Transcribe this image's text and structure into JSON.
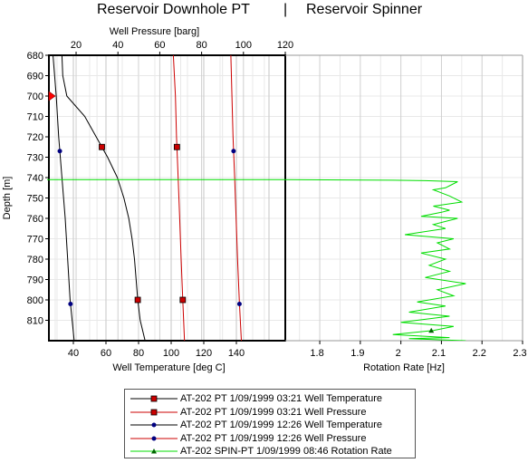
{
  "titles": {
    "left": "Reservoir Downhole PT",
    "separator": "|",
    "right": "Reservoir Spinner"
  },
  "colors": {
    "temperature_line": "#000000",
    "pressure_line": "#cc0000",
    "spinner_line": "#00dd00",
    "marker_square": "#cc0000",
    "marker_circle": "#000080",
    "marker_triangle": "#006600",
    "depth_marker": "#ff0000",
    "grid_major": "#cfcfcf",
    "grid_minor": "#e8e8e8"
  },
  "chart_data": [
    {
      "type": "line",
      "panel": "Reservoir Downhole PT",
      "ylabel": "Depth [m]",
      "ylim": [
        680,
        820
      ],
      "y_inverted": true,
      "y_ticks": [
        680,
        690,
        700,
        710,
        720,
        730,
        740,
        750,
        760,
        770,
        780,
        790,
        800,
        810
      ],
      "x_bottom": {
        "label": "Well Temperature [deg C]",
        "range": [
          25,
          170
        ],
        "ticks": [
          40,
          60,
          80,
          100,
          120,
          140
        ]
      },
      "x_top": {
        "label": "Well Pressure [barg]",
        "range": [
          7,
          120
        ],
        "ticks": [
          20,
          40,
          60,
          80,
          100,
          120
        ]
      },
      "depth_marker": 700,
      "series": [
        {
          "name": "AT-202 PT 1/09/1999 03:21 Well Temperature",
          "axis": "bottom",
          "color": "#000000",
          "marker": "square",
          "marker_depths": [
            725,
            800
          ],
          "points": [
            [
              33,
              680
            ],
            [
              33.5,
              690
            ],
            [
              36,
              700
            ],
            [
              47,
              710
            ],
            [
              54,
              720
            ],
            [
              61,
              730
            ],
            [
              67,
              740
            ],
            [
              71,
              750
            ],
            [
              74,
              760
            ],
            [
              76,
              770
            ],
            [
              77.5,
              780
            ],
            [
              78.5,
              790
            ],
            [
              79.5,
              800
            ],
            [
              81,
              810
            ],
            [
              84,
              820
            ]
          ]
        },
        {
          "name": "AT-202 PT 1/09/1999 03:21 Well Pressure",
          "axis": "top",
          "color": "#cc0000",
          "marker": "square",
          "marker_depths": [
            725,
            800
          ],
          "points": [
            [
              66.5,
              680
            ],
            [
              67.5,
              700
            ],
            [
              68,
              720
            ],
            [
              68.8,
              740
            ],
            [
              69.5,
              760
            ],
            [
              70.2,
              780
            ],
            [
              71,
              800
            ],
            [
              71.8,
              820
            ]
          ]
        },
        {
          "name": "AT-202 PT 1/09/1999 12:26 Well Temperature",
          "axis": "bottom",
          "color": "#000000",
          "marker": "circle",
          "marker_depths": [
            727,
            802
          ],
          "points": [
            [
              27.5,
              680
            ],
            [
              29.5,
              700
            ],
            [
              31,
              720
            ],
            [
              33,
              740
            ],
            [
              35,
              760
            ],
            [
              36.5,
              780
            ],
            [
              38,
              800
            ],
            [
              40.5,
              820
            ]
          ]
        },
        {
          "name": "AT-202 PT 1/09/1999 12:26 Well Pressure",
          "axis": "top",
          "color": "#cc0000",
          "marker": "circle",
          "marker_depths": [
            727,
            802
          ],
          "points": [
            [
              94,
              680
            ],
            [
              94.5,
              700
            ],
            [
              95,
              720
            ],
            [
              95.8,
              740
            ],
            [
              96.5,
              760
            ],
            [
              97.2,
              780
            ],
            [
              98,
              800
            ],
            [
              99,
              820
            ]
          ]
        }
      ]
    },
    {
      "type": "line",
      "panel": "Reservoir Spinner",
      "xlabel": "Rotation Rate [Hz]",
      "xlim": [
        1.715,
        2.3
      ],
      "x_ticks": [
        1.8,
        1.9,
        2,
        2.1,
        2.2,
        2.3
      ],
      "x_tick_labels": [
        "1.8",
        "1.9",
        "2",
        "2.1",
        "2.2",
        "2.3"
      ],
      "ylim": [
        680,
        820
      ],
      "series": [
        {
          "name": "AT-202 SPIN-PT 1/09/1999 08:46 Rotation Rate",
          "color": "#00dd00",
          "marker": "triangle",
          "marker_depths": [
            815
          ],
          "points": [
            [
              1.715,
              741
            ],
            [
              1.98,
              741.3
            ],
            [
              2.06,
              741.5
            ],
            [
              2.14,
              742
            ],
            [
              2.12,
              744
            ],
            [
              2.11,
              745
            ],
            [
              2.08,
              746
            ],
            [
              2.12,
              749
            ],
            [
              2.15,
              752
            ],
            [
              2.08,
              754
            ],
            [
              2.12,
              756
            ],
            [
              2.1,
              757
            ],
            [
              2.05,
              759
            ],
            [
              2.14,
              760
            ],
            [
              2.08,
              763
            ],
            [
              2.11,
              765
            ],
            [
              2.01,
              768
            ],
            [
              2.13,
              770
            ],
            [
              2.09,
              772
            ],
            [
              2.12,
              775
            ],
            [
              2.05,
              777
            ],
            [
              2.11,
              780
            ],
            [
              2.07,
              783
            ],
            [
              2.12,
              786
            ],
            [
              2.06,
              789
            ],
            [
              2.16,
              792
            ],
            [
              2.09,
              795
            ],
            [
              2.13,
              798
            ],
            [
              2.04,
              801
            ],
            [
              2.11,
              803
            ],
            [
              2.02,
              806
            ],
            [
              2.12,
              808
            ],
            [
              2.0,
              811
            ],
            [
              2.13,
              813
            ],
            [
              2.08,
              815
            ],
            [
              1.98,
              817
            ],
            [
              2.12,
              818.5
            ],
            [
              2.02,
              819
            ],
            [
              2.16,
              820
            ]
          ]
        }
      ]
    }
  ],
  "legend": {
    "items": [
      {
        "label": "AT-202 PT 1/09/1999 03:21 Well Temperature",
        "color": "#000000",
        "marker": "square"
      },
      {
        "label": "AT-202 PT 1/09/1999 03:21 Well Pressure",
        "color": "#cc0000",
        "marker": "square"
      },
      {
        "label": "AT-202 PT 1/09/1999 12:26 Well Temperature",
        "color": "#000000",
        "marker": "circle"
      },
      {
        "label": "AT-202 PT 1/09/1999 12:26 Well Pressure",
        "color": "#cc0000",
        "marker": "circle"
      },
      {
        "label": "AT-202 SPIN-PT 1/09/1999 08:46 Rotation Rate",
        "color": "#00dd00",
        "marker": "triangle"
      }
    ]
  }
}
